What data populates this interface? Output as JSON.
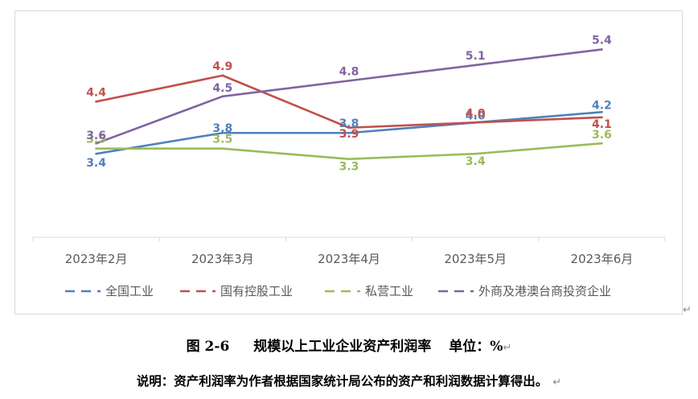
{
  "chart_data": {
    "type": "line",
    "categories": [
      "2023年2月",
      "2023年3月",
      "2023年4月",
      "2023年5月",
      "2023年6月"
    ],
    "series": [
      {
        "name": "全国工业",
        "values": [
          3.4,
          3.8,
          3.8,
          4.0,
          4.2
        ],
        "color": "#4f81bd",
        "labels": [
          "3.4",
          "3.8",
          "3.8",
          "4.0",
          "4.2"
        ]
      },
      {
        "name": "国有控股工业",
        "values": [
          4.4,
          4.9,
          3.9,
          4.0,
          4.1
        ],
        "color": "#c0504d",
        "labels": [
          "4.4",
          "4.9",
          "3.9",
          "4.0",
          "4.1"
        ]
      },
      {
        "name": "私营工业",
        "values": [
          3.5,
          3.5,
          3.3,
          3.4,
          3.6
        ],
        "color": "#9bbb59",
        "labels": [
          "3.5",
          "3.5",
          "3.3",
          "3.4",
          "3.6"
        ]
      },
      {
        "name": "外商及港澳台商投资企业",
        "values": [
          3.6,
          4.5,
          4.8,
          5.1,
          5.4
        ],
        "color": "#8064a2",
        "labels": [
          "3.6",
          "4.5",
          "4.8",
          "5.1",
          "5.4"
        ]
      }
    ],
    "ylim": [
      1.8,
      5.9
    ],
    "grid": false,
    "legend_position": "bottom"
  },
  "caption": {
    "figure_number": "图 2-6",
    "title": "规模以上工业企业资产利润率",
    "unit": "单位：%"
  },
  "note": "说明：资产利润率为作者根据国家统计局公布的资产和利润数据计算得出。",
  "return_mark": "↵"
}
